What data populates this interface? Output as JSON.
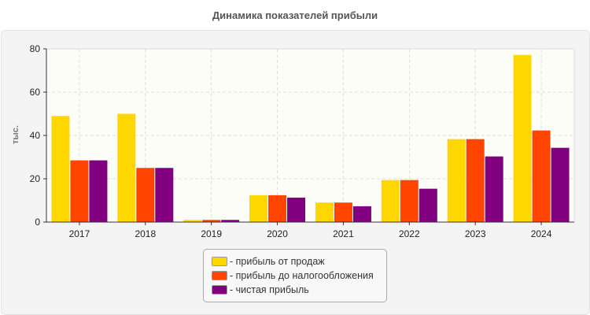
{
  "chart_data": {
    "type": "bar",
    "title": "Динамика показателей прибыли",
    "ylabel": "тыс.",
    "xlabel": "",
    "ylim": [
      0,
      80
    ],
    "yticks": [
      0,
      20,
      40,
      60,
      80
    ],
    "grid": true,
    "legend_position": "bottom",
    "categories": [
      "2017",
      "2018",
      "2019",
      "2020",
      "2021",
      "2022",
      "2023",
      "2024"
    ],
    "series": [
      {
        "name": "- прибыль от продаж",
        "color": "#FFD700",
        "values": [
          49,
          50,
          1,
          12.4,
          9,
          19.4,
          38.3,
          77.2
        ]
      },
      {
        "name": "- прибыль до налогообложения",
        "color": "#FF4500",
        "values": [
          28.5,
          25,
          1,
          12.4,
          9,
          19.4,
          38.3,
          42.3
        ]
      },
      {
        "name": "- чистая прибыль",
        "color": "#800080",
        "values": [
          28.5,
          25,
          1,
          11.3,
          7.3,
          15.4,
          30.3,
          34.3
        ]
      }
    ]
  }
}
